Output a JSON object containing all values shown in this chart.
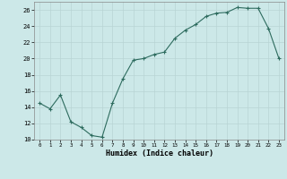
{
  "x": [
    0,
    1,
    2,
    3,
    4,
    5,
    6,
    7,
    8,
    9,
    10,
    11,
    12,
    13,
    14,
    15,
    16,
    17,
    18,
    19,
    20,
    21,
    22,
    23
  ],
  "y": [
    14.5,
    13.8,
    15.5,
    12.2,
    11.5,
    10.5,
    10.3,
    14.5,
    17.5,
    19.8,
    20.0,
    20.5,
    20.8,
    22.5,
    23.5,
    24.2,
    25.2,
    25.6,
    25.7,
    26.3,
    26.2,
    26.2,
    23.7,
    20.0
  ],
  "xlabel": "Humidex (Indice chaleur)",
  "line_color": "#2d6b5e",
  "marker": "+",
  "bg_color": "#cce8e8",
  "grid_color": "#b8d4d4",
  "ylim": [
    10,
    27
  ],
  "xlim": [
    -0.5,
    23.5
  ],
  "yticks": [
    10,
    12,
    14,
    16,
    18,
    20,
    22,
    24,
    26
  ],
  "xticks": [
    0,
    1,
    2,
    3,
    4,
    5,
    6,
    7,
    8,
    9,
    10,
    11,
    12,
    13,
    14,
    15,
    16,
    17,
    18,
    19,
    20,
    21,
    22,
    23
  ]
}
